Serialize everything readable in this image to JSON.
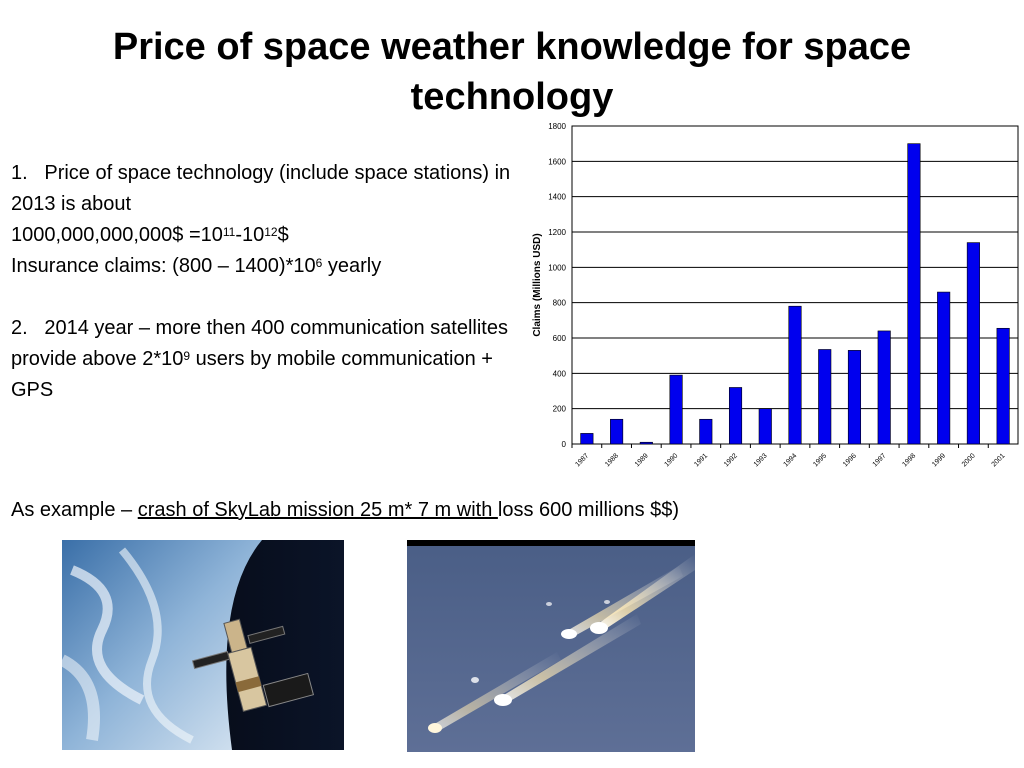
{
  "slide": {
    "title": "Price of space weather knowledge for space technology",
    "point1": {
      "number": "1.",
      "line1": "Price of  space technology (include space stations) in 2013 is about",
      "line2_prefix": "1000,000,000,000$ =10",
      "line2_exp1": "11",
      "line2_mid": "-10",
      "line2_exp2": "12",
      "line2_suffix": "$",
      "line3_prefix": "Insurance claims: (800 – 1400)*10",
      "line3_exp": "6",
      "line3_suffix": " yearly"
    },
    "point2": {
      "number": "2.",
      "text_prefix": "2014 year – more then 400 communication satellites provide above 2*10",
      "text_exp": "9",
      "text_suffix": " users by mobile communication + GPS"
    },
    "example": {
      "prefix": "As example – ",
      "underlined": "crash of SkyLab mission 25 m* 7 m with ",
      "suffix": "loss 600 millions $$)"
    },
    "images": {
      "skylab": "skylab-in-orbit-photo",
      "crash": "skylab-reentry-debris-photo"
    }
  },
  "chart_data": {
    "type": "bar",
    "ylabel": "Claims (Millions USD)",
    "xlabel": "",
    "ylim": [
      0,
      1800
    ],
    "yticks": [
      0,
      200,
      400,
      600,
      800,
      1000,
      1200,
      1400,
      1600,
      1800
    ],
    "grid": true,
    "bar_color": "#0000ee",
    "categories": [
      "1987",
      "1988",
      "1989",
      "1990",
      "1991",
      "1992",
      "1993",
      "1994",
      "1995",
      "1996",
      "1997",
      "1998",
      "1999",
      "2000",
      "2001"
    ],
    "values": [
      60,
      140,
      10,
      390,
      140,
      320,
      200,
      780,
      535,
      530,
      640,
      1700,
      860,
      1140,
      655
    ]
  }
}
